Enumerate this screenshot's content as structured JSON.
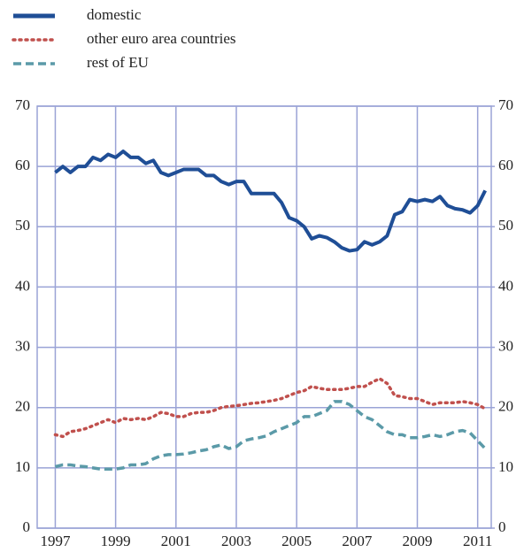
{
  "chart_data": {
    "type": "line",
    "x": [
      1997,
      1997.25,
      1997.5,
      1997.75,
      1998,
      1998.25,
      1998.5,
      1998.75,
      1999,
      1999.25,
      1999.5,
      1999.75,
      2000,
      2000.25,
      2000.5,
      2000.75,
      2001,
      2001.25,
      2001.5,
      2001.75,
      2002,
      2002.25,
      2002.5,
      2002.75,
      2003,
      2003.25,
      2003.5,
      2003.75,
      2004,
      2004.25,
      2004.5,
      2004.75,
      2005,
      2005.25,
      2005.5,
      2005.75,
      2006,
      2006.25,
      2006.5,
      2006.75,
      2007,
      2007.25,
      2007.5,
      2007.75,
      2008,
      2008.25,
      2008.5,
      2008.75,
      2009,
      2009.25,
      2009.5,
      2009.75,
      2010,
      2010.25,
      2010.5,
      2010.75,
      2011,
      2011.25
    ],
    "series": [
      {
        "name": "domestic",
        "color": "#1f4e96",
        "style": "solid",
        "values": [
          59,
          60,
          59,
          60,
          60,
          61.5,
          61,
          62,
          61.5,
          62.5,
          61.5,
          61.5,
          60.5,
          61,
          59,
          58.5,
          59,
          59.5,
          59.5,
          59.5,
          58.5,
          58.5,
          57.5,
          57,
          57.5,
          57.5,
          55.5,
          55.5,
          55.5,
          55.5,
          54,
          51.5,
          51,
          50,
          48,
          48.5,
          48.2,
          47.5,
          46.5,
          46,
          46.2,
          47.5,
          47,
          47.5,
          48.5,
          52,
          52.5,
          54.5,
          54.2,
          54.5,
          54.2,
          55,
          53.5,
          53,
          52.8,
          52.3,
          53.5,
          56
        ]
      },
      {
        "name": "other euro area countries",
        "color": "#c0504d",
        "style": "dotted",
        "values": [
          15.5,
          15.2,
          16,
          16.2,
          16.5,
          17,
          17.5,
          18,
          17.5,
          18.2,
          18,
          18.2,
          18,
          18.5,
          19.2,
          19,
          18.5,
          18.5,
          19,
          19.2,
          19.2,
          19.5,
          20,
          20.2,
          20.3,
          20.5,
          20.7,
          20.8,
          21,
          21.2,
          21.5,
          22,
          22.5,
          22.8,
          23.5,
          23.2,
          23,
          23,
          23,
          23.2,
          23.5,
          23.5,
          24.2,
          24.8,
          24,
          22,
          21.8,
          21.5,
          21.5,
          21,
          20.5,
          20.8,
          20.8,
          20.8,
          21,
          20.8,
          20.5,
          19.8
        ]
      },
      {
        "name": "rest of EU",
        "color": "#5b9aa8",
        "style": "dashed",
        "values": [
          10.2,
          10.5,
          10.5,
          10.3,
          10.2,
          10,
          9.8,
          9.8,
          9.8,
          10,
          10.5,
          10.5,
          10.7,
          11.5,
          12,
          12.2,
          12.2,
          12.3,
          12.5,
          12.8,
          13,
          13.5,
          13.8,
          13.2,
          13.5,
          14.5,
          14.8,
          15,
          15.3,
          16,
          16.5,
          17,
          17.5,
          18.5,
          18.5,
          19,
          19.5,
          21,
          21,
          20.5,
          19.5,
          18.5,
          18,
          17,
          16,
          15.5,
          15.5,
          15,
          15,
          15.2,
          15.5,
          15.2,
          15.5,
          16,
          16.2,
          15.8,
          14.5,
          13.2
        ]
      }
    ],
    "xlim": [
      1996.4,
      2011.45
    ],
    "xticks": [
      1997,
      1999,
      2001,
      2003,
      2005,
      2007,
      2009,
      2011
    ],
    "ylim": [
      0,
      70
    ],
    "yticks": [
      0,
      10,
      20,
      30,
      40,
      50,
      60,
      70
    ],
    "y2lim": [
      0,
      70
    ],
    "y2ticks": [
      0,
      10,
      20,
      30,
      40,
      50,
      60,
      70
    ],
    "grid": true,
    "legend": "top-left"
  }
}
